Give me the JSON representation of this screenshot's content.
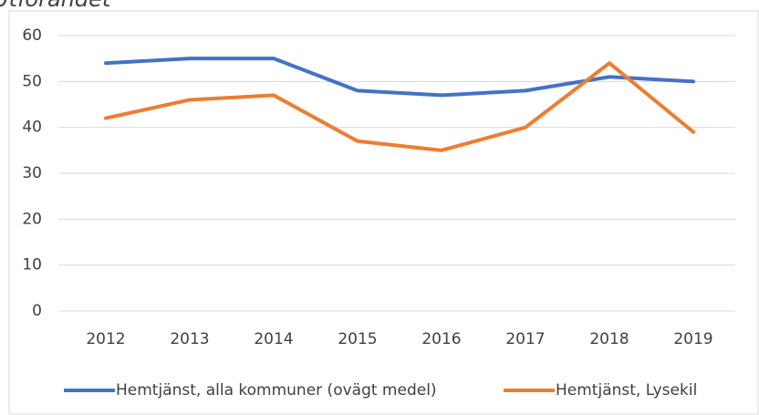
{
  "chart_data": {
    "type": "line",
    "title": "Utförandet",
    "categories": [
      "2012",
      "2013",
      "2014",
      "2015",
      "2016",
      "2017",
      "2018",
      "2019"
    ],
    "series": [
      {
        "name": "Hemtjänst, alla kommuner (ovägt medel)",
        "color": "#4472c4",
        "values": [
          54,
          55,
          55,
          48,
          47,
          48,
          51,
          50
        ]
      },
      {
        "name": "Hemtjänst, Lysekil",
        "color": "#ed7d31",
        "values": [
          42,
          46,
          47,
          37,
          35,
          40,
          54,
          39
        ]
      }
    ],
    "ylim": [
      0,
      60
    ],
    "yticks": [
      0,
      10,
      20,
      30,
      40,
      50,
      60
    ],
    "grid": true,
    "legend": "bottom"
  }
}
